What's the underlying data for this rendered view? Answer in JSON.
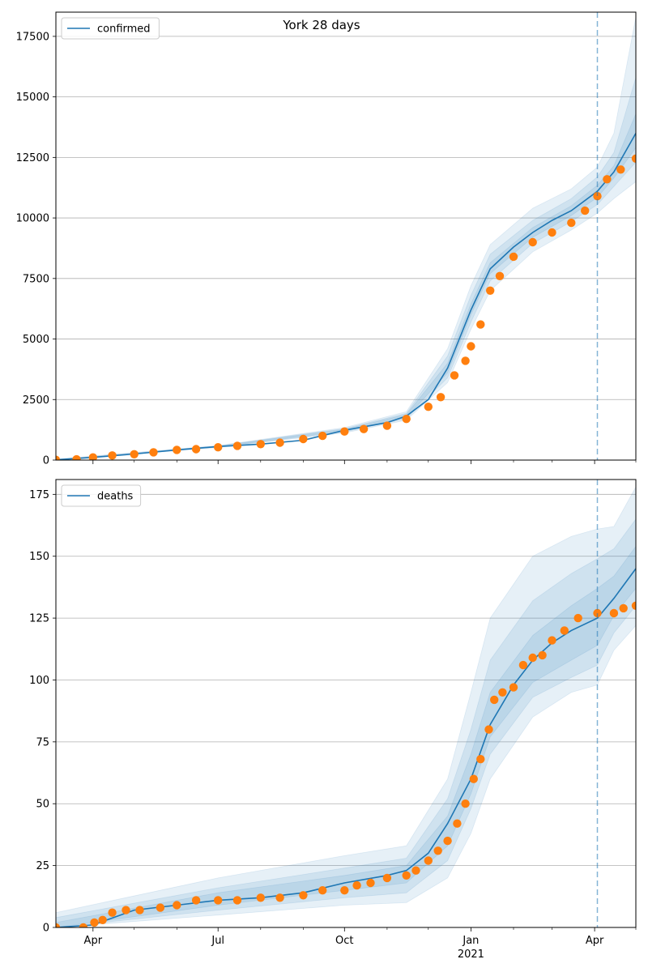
{
  "title": "York 28 days",
  "colors": {
    "model": "#1f77b4",
    "observed": "#ff7f0e",
    "band": "#1f77b4",
    "grid": "#b0b0b0",
    "divider": "#1f77b4"
  },
  "x_axis": {
    "ticks": [
      {
        "date": "2020-04-01",
        "label": "Apr",
        "label2": ""
      },
      {
        "date": "2020-07-01",
        "label": "Jul",
        "label2": ""
      },
      {
        "date": "2020-10-01",
        "label": "Oct",
        "label2": ""
      },
      {
        "date": "2021-01-01",
        "label": "Jan",
        "label2": "2021"
      },
      {
        "date": "2021-04-01",
        "label": "Apr",
        "label2": ""
      }
    ],
    "minor_tick_dates": [
      "2020-05-01",
      "2020-06-01",
      "2020-08-01",
      "2020-09-01",
      "2020-11-01",
      "2020-12-01",
      "2021-02-01",
      "2021-03-01",
      "2021-05-01"
    ],
    "range": [
      "2020-03-05",
      "2021-05-01"
    ]
  },
  "chart_data": [
    {
      "type": "line",
      "legend": "confirmed",
      "legend_position": "top-left",
      "grid": "horizontal",
      "ylim": [
        0,
        18500
      ],
      "yticks": [
        0,
        2500,
        5000,
        7500,
        10000,
        12500,
        15000,
        17500
      ],
      "forecast_start": "2021-04-03",
      "model": {
        "x": [
          "2020-03-05",
          "2020-04-01",
          "2020-05-01",
          "2020-06-01",
          "2020-07-01",
          "2020-08-01",
          "2020-09-01",
          "2020-10-01",
          "2020-11-01",
          "2020-11-15",
          "2020-12-01",
          "2020-12-15",
          "2021-01-01",
          "2021-01-15",
          "2021-02-01",
          "2021-02-15",
          "2021-03-01",
          "2021-03-15",
          "2021-04-03",
          "2021-04-15",
          "2021-05-01"
        ],
        "y": [
          10,
          110,
          250,
          420,
          560,
          660,
          820,
          1230,
          1550,
          1820,
          2500,
          3800,
          6200,
          7900,
          8800,
          9400,
          9900,
          10300,
          11100,
          11900,
          13500
        ]
      },
      "bands": [
        {
          "x": [
            "2020-03-05",
            "2020-07-01",
            "2020-10-01",
            "2020-11-15",
            "2020-12-15",
            "2021-01-01",
            "2021-01-15",
            "2021-02-15",
            "2021-03-15",
            "2021-04-03",
            "2021-04-15",
            "2021-05-01"
          ],
          "lower": [
            0,
            520,
            1120,
            1650,
            3200,
            5400,
            7000,
            8600,
            9500,
            10200,
            10800,
            11500
          ],
          "upper": [
            40,
            600,
            1340,
            2000,
            4600,
            7200,
            8900,
            10400,
            11200,
            12100,
            13500,
            18300
          ]
        },
        {
          "x": [
            "2020-03-05",
            "2020-07-01",
            "2020-10-01",
            "2020-11-15",
            "2020-12-15",
            "2021-01-01",
            "2021-01-15",
            "2021-02-15",
            "2021-03-15",
            "2021-04-03",
            "2021-04-15",
            "2021-05-01"
          ],
          "lower": [
            0,
            535,
            1160,
            1710,
            3400,
            5700,
            7400,
            8950,
            9850,
            10550,
            11300,
            12300
          ],
          "upper": [
            25,
            585,
            1300,
            1930,
            4300,
            6800,
            8500,
            9900,
            10800,
            11700,
            12700,
            15800
          ]
        },
        {
          "x": [
            "2020-03-05",
            "2020-07-01",
            "2020-10-01",
            "2020-11-15",
            "2020-12-15",
            "2021-01-01",
            "2021-01-15",
            "2021-02-15",
            "2021-03-15",
            "2021-04-03",
            "2021-04-15",
            "2021-05-01"
          ],
          "lower": [
            0,
            545,
            1190,
            1760,
            3600,
            6000,
            7700,
            9200,
            10100,
            10850,
            11650,
            12900
          ],
          "upper": [
            15,
            575,
            1270,
            1880,
            4000,
            6450,
            8150,
            9600,
            10500,
            11350,
            12150,
            14300
          ]
        }
      ],
      "observed": {
        "x": [
          "2020-03-05",
          "2020-03-20",
          "2020-04-01",
          "2020-04-15",
          "2020-05-01",
          "2020-05-15",
          "2020-06-01",
          "2020-06-15",
          "2020-07-01",
          "2020-07-15",
          "2020-08-01",
          "2020-08-15",
          "2020-09-01",
          "2020-09-15",
          "2020-10-01",
          "2020-10-15",
          "2020-11-01",
          "2020-11-15",
          "2020-12-01",
          "2020-12-10",
          "2020-12-20",
          "2020-12-28",
          "2021-01-01",
          "2021-01-08",
          "2021-01-15",
          "2021-01-22",
          "2021-02-01",
          "2021-02-15",
          "2021-03-01",
          "2021-03-15",
          "2021-03-25",
          "2021-04-03",
          "2021-04-10",
          "2021-04-20",
          "2021-05-01"
        ],
        "y": [
          10,
          30,
          110,
          190,
          240,
          320,
          420,
          450,
          530,
          590,
          660,
          720,
          870,
          1000,
          1180,
          1280,
          1420,
          1700,
          2200,
          2600,
          3500,
          4100,
          4700,
          5600,
          7000,
          7600,
          8400,
          9000,
          9400,
          9800,
          10300,
          10900,
          11600,
          12000,
          12450
        ]
      }
    },
    {
      "type": "line",
      "legend": "deaths",
      "legend_position": "top-left",
      "grid": "horizontal",
      "ylim": [
        0,
        181
      ],
      "yticks": [
        0,
        25,
        50,
        75,
        100,
        125,
        150,
        175
      ],
      "forecast_start": "2021-04-03",
      "model": {
        "x": [
          "2020-03-05",
          "2020-04-01",
          "2020-05-01",
          "2020-06-01",
          "2020-07-01",
          "2020-08-01",
          "2020-09-01",
          "2020-10-01",
          "2020-11-01",
          "2020-11-15",
          "2020-12-01",
          "2020-12-15",
          "2021-01-01",
          "2021-01-15",
          "2021-02-01",
          "2021-02-15",
          "2021-03-01",
          "2021-03-15",
          "2021-04-03",
          "2021-04-15",
          "2021-05-01"
        ],
        "y": [
          0,
          1,
          7,
          9,
          11,
          12,
          14,
          18,
          21,
          23,
          30,
          42,
          60,
          82,
          98,
          108,
          115,
          120,
          125,
          133,
          145
        ]
      },
      "bands": [
        {
          "x": [
            "2020-03-05",
            "2020-07-01",
            "2020-10-01",
            "2020-11-15",
            "2020-12-15",
            "2021-01-01",
            "2021-01-15",
            "2021-02-15",
            "2021-03-15",
            "2021-04-03",
            "2021-04-15",
            "2021-05-01"
          ],
          "lower": [
            0,
            5,
            9,
            10,
            20,
            38,
            60,
            85,
            95,
            98,
            112,
            122
          ],
          "upper": [
            6,
            20,
            29,
            33,
            60,
            95,
            125,
            150,
            158,
            161,
            162,
            178
          ]
        },
        {
          "x": [
            "2020-03-05",
            "2020-07-01",
            "2020-10-01",
            "2020-11-15",
            "2020-12-15",
            "2021-01-01",
            "2021-01-15",
            "2021-02-15",
            "2021-03-15",
            "2021-04-03",
            "2021-04-15",
            "2021-05-01"
          ],
          "lower": [
            0,
            7,
            12,
            14,
            27,
            48,
            70,
            93,
            101,
            106,
            119,
            130
          ],
          "upper": [
            4,
            16,
            24,
            28,
            52,
            80,
            108,
            132,
            143,
            149,
            153,
            165
          ]
        },
        {
          "x": [
            "2020-03-05",
            "2020-07-01",
            "2020-10-01",
            "2020-11-15",
            "2020-12-15",
            "2021-01-01",
            "2021-01-15",
            "2021-02-15",
            "2021-03-15",
            "2021-04-03",
            "2021-04-15",
            "2021-05-01"
          ],
          "lower": [
            0,
            9,
            15,
            18,
            33,
            54,
            77,
            99,
            108,
            114,
            126,
            137
          ],
          "upper": [
            2,
            14,
            21,
            25,
            45,
            70,
            95,
            118,
            130,
            137,
            142,
            154
          ]
        }
      ],
      "observed": {
        "x": [
          "2020-03-05",
          "2020-03-25",
          "2020-04-02",
          "2020-04-08",
          "2020-04-15",
          "2020-04-25",
          "2020-05-05",
          "2020-05-20",
          "2020-06-01",
          "2020-06-15",
          "2020-07-01",
          "2020-07-15",
          "2020-08-01",
          "2020-08-15",
          "2020-09-01",
          "2020-09-15",
          "2020-10-01",
          "2020-10-10",
          "2020-10-20",
          "2020-11-01",
          "2020-11-15",
          "2020-11-22",
          "2020-12-01",
          "2020-12-08",
          "2020-12-15",
          "2020-12-22",
          "2020-12-28",
          "2021-01-03",
          "2021-01-08",
          "2021-01-14",
          "2021-01-18",
          "2021-01-24",
          "2021-02-01",
          "2021-02-08",
          "2021-02-15",
          "2021-02-22",
          "2021-03-01",
          "2021-03-10",
          "2021-03-20",
          "2021-04-03",
          "2021-04-15",
          "2021-04-22",
          "2021-05-01"
        ],
        "y": [
          0,
          0,
          2,
          3,
          6,
          7,
          7,
          8,
          9,
          11,
          11,
          11,
          12,
          12,
          13,
          15,
          15,
          17,
          18,
          20,
          21,
          23,
          27,
          31,
          35,
          42,
          50,
          60,
          68,
          80,
          92,
          95,
          97,
          106,
          109,
          110,
          116,
          120,
          125,
          127,
          127,
          129,
          130
        ]
      }
    }
  ]
}
